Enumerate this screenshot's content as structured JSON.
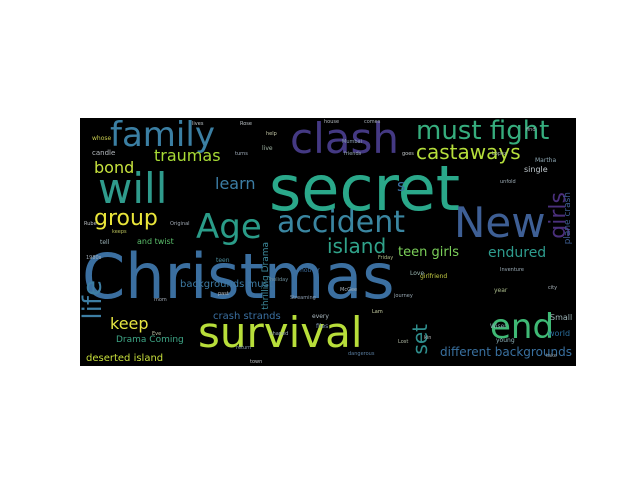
{
  "wordcloud": {
    "words": [
      {
        "text": "Christmas",
        "color": "#3b6fa0"
      },
      {
        "text": "secret",
        "color": "#2aa88a"
      },
      {
        "text": "survival",
        "color": "#b8de3a"
      },
      {
        "text": "will",
        "color": "#2f9b8c"
      },
      {
        "text": "New",
        "color": "#3e5f95"
      },
      {
        "text": "clash",
        "color": "#443983"
      },
      {
        "text": "family",
        "color": "#3b7fa3"
      },
      {
        "text": "Age",
        "color": "#2a9c88"
      },
      {
        "text": "accident",
        "color": "#3a86a1"
      },
      {
        "text": "end",
        "color": "#3fb975"
      },
      {
        "text": "must fight",
        "color": "#36ad7d"
      },
      {
        "text": "life",
        "color": "#3d7ea3"
      },
      {
        "text": "group",
        "color": "#e9e53a"
      },
      {
        "text": "girls",
        "color": "#4a2f7c"
      },
      {
        "text": "island",
        "color": "#30a38a"
      },
      {
        "text": "set",
        "color": "#2f8e8d"
      },
      {
        "text": "castaways",
        "color": "#b5de3b"
      },
      {
        "text": "traumas",
        "color": "#a8db35"
      },
      {
        "text": "learn",
        "color": "#3c7da4"
      },
      {
        "text": "bond",
        "color": "#c7e23e"
      },
      {
        "text": "keep",
        "color": "#e6e542"
      },
      {
        "text": "teen girls",
        "color": "#7bd05a"
      },
      {
        "text": "endured",
        "color": "#2e9c8e"
      },
      {
        "text": "s",
        "color": "#3a6ea2"
      },
      {
        "text": "different backgrounds",
        "color": "#39709f"
      },
      {
        "text": "deserted island",
        "color": "#c8df3c"
      },
      {
        "text": "crash strands",
        "color": "#3a6fa0"
      },
      {
        "text": "backgrounds must",
        "color": "#3d7aa2"
      },
      {
        "text": "Drama Coming",
        "color": "#3ea686"
      },
      {
        "text": "thrilling Drama",
        "color": "#3e8a9c"
      },
      {
        "text": "plane crash",
        "color": "#3d5d91"
      },
      {
        "text": "and twist",
        "color": "#5bbf6b"
      },
      {
        "text": "teen",
        "color": "#4d8f9e"
      },
      {
        "text": "mother",
        "color": "#3e6e9f"
      },
      {
        "text": "single",
        "color": "#bfc7cc"
      },
      {
        "text": "young",
        "color": "#8fb1ba"
      },
      {
        "text": "Wiser",
        "color": "#87b4b3"
      },
      {
        "text": "world",
        "color": "#2a6d9c"
      },
      {
        "text": "Martha",
        "color": "#8fa8b4"
      },
      {
        "text": "candle",
        "color": "#b7bcc1"
      },
      {
        "text": "live",
        "color": "#a0b5a5"
      },
      {
        "text": "Small",
        "color": "#9bb2b5"
      },
      {
        "text": "girlfriend",
        "color": "#c5cd44"
      },
      {
        "text": "year",
        "color": "#aabb8b"
      },
      {
        "text": "Love",
        "color": "#9cb9b3"
      },
      {
        "text": "every",
        "color": "#aebcc3"
      },
      {
        "text": "tell",
        "color": "#9cb3b8"
      },
      {
        "text": "whose",
        "color": "#c4c84d"
      },
      {
        "text": "files",
        "color": "#7a8fab"
      },
      {
        "text": "holiday",
        "color": "#6d8e9c"
      },
      {
        "text": "dangerous",
        "color": "#5a7ea0"
      },
      {
        "text": "Friday",
        "color": "#b0bc87"
      },
      {
        "text": "Streaming",
        "color": "#8e9fb2"
      },
      {
        "text": "Original",
        "color": "#9fa8b2"
      },
      {
        "text": "goes",
        "color": "#c1c6c9"
      },
      {
        "text": "shaped",
        "color": "#9fb0b8"
      },
      {
        "text": "help",
        "color": "#c5c9a8"
      },
      {
        "text": "turns",
        "color": "#a4b1bf"
      },
      {
        "text": "friends",
        "color": "#96a8b4"
      },
      {
        "text": "Lam",
        "color": "#c9d0a4"
      },
      {
        "text": "kin",
        "color": "#b8b8b8"
      },
      {
        "text": "Eve",
        "color": "#bcc1a4"
      },
      {
        "text": "mom",
        "color": "#a1a9b4"
      },
      {
        "text": "McGee",
        "color": "#a8b3bc"
      },
      {
        "text": "journey",
        "color": "#9aaab5"
      },
      {
        "text": "Rube",
        "color": "#b9bec2"
      },
      {
        "text": "return",
        "color": "#8a9eb0"
      },
      {
        "text": "Lopez",
        "color": "#a6b5a6"
      },
      {
        "text": "Inventure",
        "color": "#9cacb7"
      },
      {
        "text": "past",
        "color": "#b2b7bc"
      },
      {
        "text": "keeps",
        "color": "#b8c05a"
      },
      {
        "text": "1980s",
        "color": "#a3b0bb"
      },
      {
        "text": "town",
        "color": "#c0c3c6"
      },
      {
        "text": "unfold",
        "color": "#9eadb6"
      },
      {
        "text": "Rose",
        "color": "#bcc2c6"
      },
      {
        "text": "take",
        "color": "#8ea0ad"
      },
      {
        "text": "find",
        "color": "#aab6bc"
      },
      {
        "text": "house",
        "color": "#b3b9bd"
      },
      {
        "text": "comes",
        "color": "#a6aeb6"
      },
      {
        "text": "lives",
        "color": "#bdc3c7"
      },
      {
        "text": "Lost",
        "color": "#b0b9a5"
      },
      {
        "text": "Mumbai",
        "color": "#8ca0b0"
      },
      {
        "text": "city",
        "color": "#a9b4bb"
      }
    ]
  }
}
